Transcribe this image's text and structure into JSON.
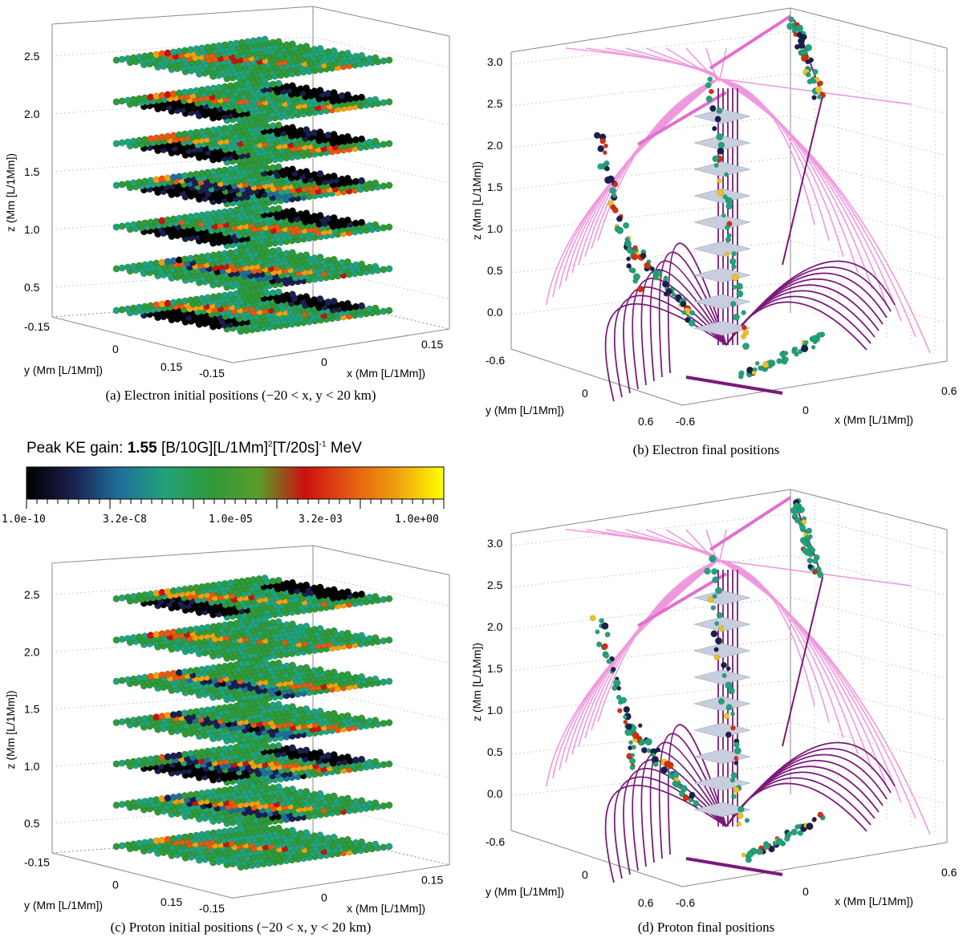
{
  "colorbar": {
    "title_prefix": "Peak KE gain: ",
    "title_value": "1.55",
    "title_units_a": " [B/10G][L/1Mm]",
    "title_exp_a": "2",
    "title_units_b": "[T/20s]",
    "title_exp_b": "-1",
    "title_units_c": " MeV",
    "ticks": [
      "1.0e-10",
      "3.2e-C8",
      "1.0e-05",
      "3.2e-03",
      "1.0e+00"
    ],
    "colors": [
      "#000000",
      "#1a1f4d",
      "#1f6f9a",
      "#22a27a",
      "#2f9a3a",
      "#5a9e2a",
      "#cc1010",
      "#e35a10",
      "#f0a010",
      "#ffff00"
    ]
  },
  "panels": {
    "a": {
      "caption": "(a) Electron initial positions (−20 < x, y < 20 km)",
      "z_label": "z (Mm [L/1Mm])",
      "y_label": "y (Mm [L/1Mm])",
      "x_label": "x (Mm [L/1Mm])",
      "z_ticks": [
        "2.5",
        "2.0",
        "1.5",
        "1.0",
        "0.5"
      ],
      "y_ticks": [
        "-0.15",
        "0",
        "0.15"
      ],
      "x_ticks": [
        "-0.15",
        "0",
        "0.15"
      ]
    },
    "b": {
      "caption": "(b) Electron final positions",
      "z_label": "z (Mm [L/1Mm])",
      "y_label": "y (Mm [L/1Mm])",
      "x_label": "x (Mm [L/1Mm])",
      "z_ticks": [
        "3.0",
        "2.5",
        "2.0",
        "1.5",
        "1.0",
        "0.5",
        "0.0"
      ],
      "y_ticks": [
        "-0.6",
        "0",
        "0.6"
      ],
      "x_ticks": [
        "-0.6",
        "0",
        "0.6"
      ]
    },
    "c": {
      "caption": "(c) Proton initial positions (−20 < x, y < 20 km)",
      "z_label": "z (Mm [L/1Mm])",
      "y_label": "y (Mm [L/1Mm])",
      "x_label": "x (Mm [L/1Mm])",
      "z_ticks": [
        "2.5",
        "2.0",
        "1.5",
        "1.0",
        "0.5"
      ],
      "y_ticks": [
        "-0.15",
        "0",
        "0.15"
      ],
      "x_ticks": [
        "-0.15",
        "0",
        "0.15"
      ]
    },
    "d": {
      "caption": "(d) Proton final positions",
      "z_label": "z (Mm [L/1Mm])",
      "y_label": "y (Mm [L/1Mm])",
      "x_label": "x (Mm [L/1Mm])",
      "z_ticks": [
        "3.0",
        "2.5",
        "2.0",
        "1.5",
        "1.0",
        "0.5",
        "0.0"
      ],
      "y_ticks": [
        "-0.6",
        "0",
        "0.6"
      ],
      "x_ticks": [
        "-0.6",
        "0",
        "0.6"
      ]
    }
  }
}
